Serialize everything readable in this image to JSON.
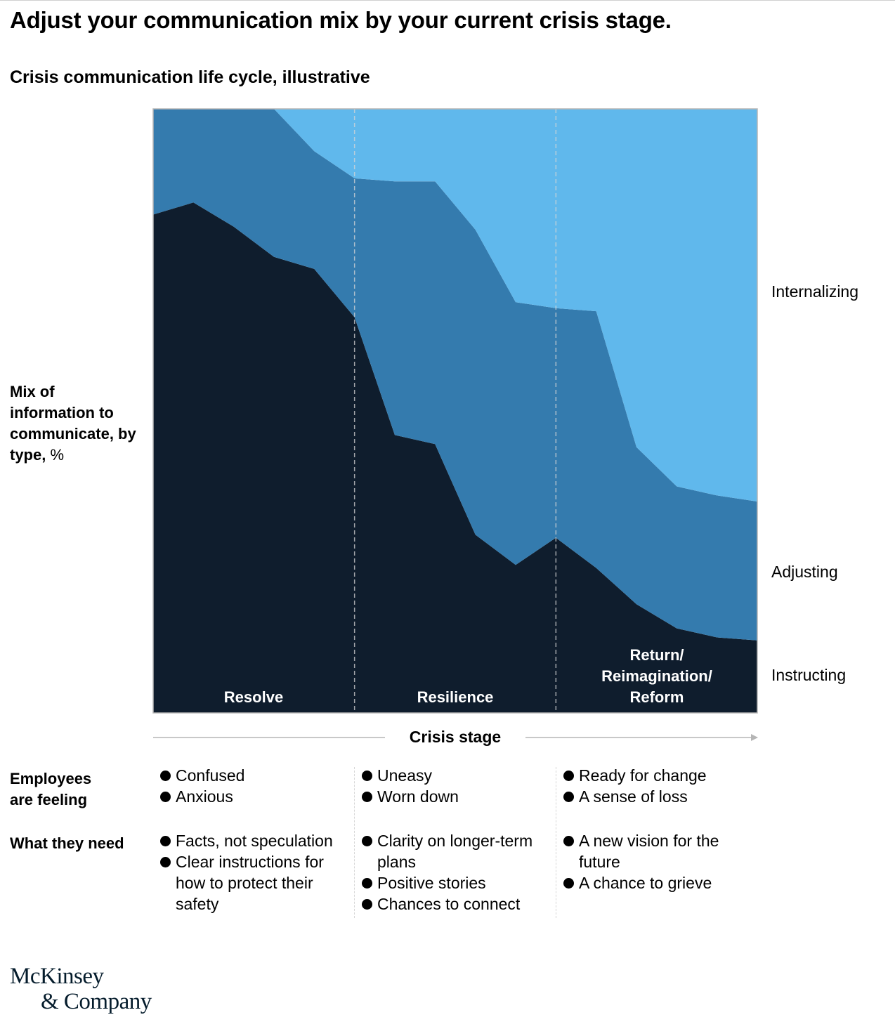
{
  "title": "Adjust your communication mix by your current crisis stage.",
  "subtitle": "Crisis communication life cycle, illustrative",
  "y_axis": {
    "label_bold": "Mix of information to communicate, by type,",
    "unit": "%"
  },
  "x_axis": {
    "label": "Crisis stage"
  },
  "colors": {
    "instructing": "#0f1d2d",
    "adjusting": "#347bae",
    "internalizing": "#60b8ec",
    "divider": "#d6d6d6",
    "frame": "#b5b5b5"
  },
  "chart_data": {
    "type": "area",
    "stacked": true,
    "ylim": [
      0,
      100
    ],
    "x": [
      0,
      1,
      2,
      3,
      4,
      5,
      6,
      7,
      8,
      9,
      10,
      11,
      12,
      13,
      14,
      15
    ],
    "series": [
      {
        "name": "Instructing",
        "values": [
          82.5,
          84.5,
          80.5,
          75.5,
          73.5,
          65.5,
          46,
          44.5,
          29.5,
          24.5,
          29,
          24,
          18,
          14,
          12.5,
          12
        ]
      },
      {
        "name": "Adjusting",
        "values": [
          17.5,
          15.5,
          19.5,
          24.5,
          19.5,
          23,
          42,
          43.5,
          50.5,
          43.5,
          38,
          42.5,
          26,
          23.5,
          23.5,
          23
        ]
      },
      {
        "name": "Internalizing",
        "values": [
          0,
          0,
          0,
          0,
          7,
          11.5,
          12,
          12,
          20,
          32,
          33,
          33.5,
          56,
          62.5,
          64,
          65
        ]
      }
    ],
    "stages": [
      "Resolve",
      "Resilience",
      "Return/ Reimagination/ Reform"
    ],
    "stage_boundaries_x": [
      5,
      10
    ],
    "legend_placement": "right",
    "grid": false
  },
  "stage_labels": {
    "resolve": "Resolve",
    "resilience": "Resilience",
    "reform_lines": [
      "Return/",
      "Reimagination/",
      "Reform"
    ]
  },
  "series_labels": {
    "internalizing": "Internalizing",
    "adjusting": "Adjusting",
    "instructing": "Instructing"
  },
  "feelings": {
    "label_lines": [
      "Employees",
      "are feeling"
    ],
    "columns": [
      [
        "Confused",
        "Anxious"
      ],
      [
        "Uneasy",
        "Worn down"
      ],
      [
        "Ready for change",
        "A sense of loss"
      ]
    ]
  },
  "needs": {
    "label": "What they need",
    "columns": [
      [
        "Facts, not speculation",
        "Clear instructions for how to protect their safety"
      ],
      [
        "Clarity on longer-term plans",
        "Positive stories",
        "Chances to connect"
      ],
      [
        "A new vision for the future",
        "A chance to grieve"
      ]
    ]
  },
  "logo": {
    "line1": "McKinsey",
    "line2": "& Company"
  }
}
